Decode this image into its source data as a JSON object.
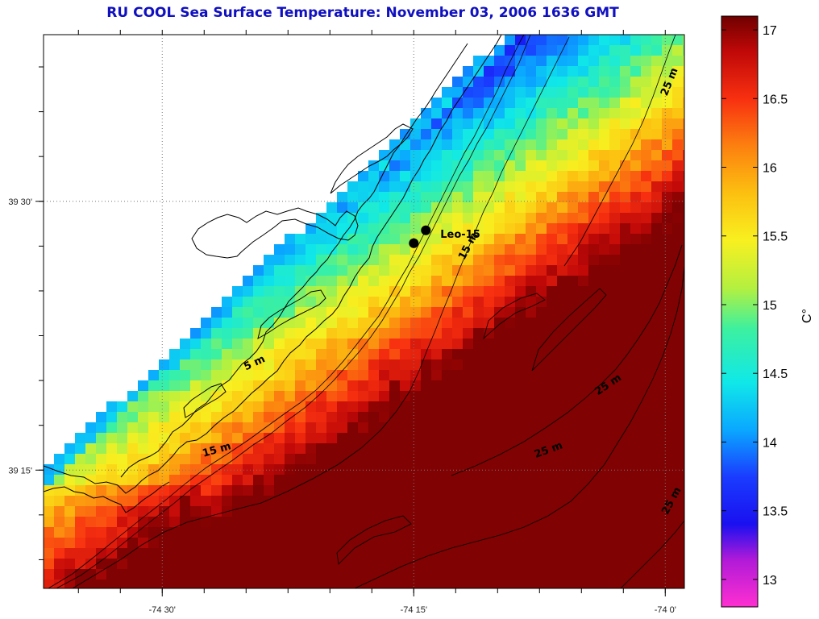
{
  "title": "RU COOL  Sea Surface Temperature:  November 03, 2006 1636 GMT",
  "map": {
    "lon_range": [
      -74.618,
      -73.981
    ],
    "lat_range": [
      39.14,
      39.655
    ],
    "x_tick_labels": [
      {
        "lon": -74.5,
        "label": "-74 30'"
      },
      {
        "lon": -74.25,
        "label": "-74 15'"
      },
      {
        "lon": -74.0,
        "label": "-74 0'"
      }
    ],
    "y_tick_labels": [
      {
        "lat": 39.5,
        "label": "39 30'"
      },
      {
        "lat": 39.25,
        "label": "39 15'"
      }
    ],
    "station": {
      "label": "Leo-15",
      "points": [
        {
          "lon": -74.238,
          "lat": 39.473
        },
        {
          "lon": -74.25,
          "lat": 39.461
        }
      ]
    },
    "contour_labels": [
      {
        "text": "5 m",
        "lon": -74.407,
        "lat": 39.347,
        "angle": -25
      },
      {
        "text": "15 m",
        "lon": -74.193,
        "lat": 39.457,
        "angle": -62
      },
      {
        "text": "15 m",
        "lon": -74.445,
        "lat": 39.266,
        "angle": -16
      },
      {
        "text": "25 m",
        "lon": -74.055,
        "lat": 39.327,
        "angle": -34
      },
      {
        "text": "25 m",
        "lon": -74.115,
        "lat": 39.266,
        "angle": -20
      },
      {
        "text": "25 m",
        "lon": -73.993,
        "lat": 39.61,
        "angle": -68
      },
      {
        "text": "25 m",
        "lon": -73.991,
        "lat": 39.22,
        "angle": -62
      }
    ]
  },
  "colorbar": {
    "unit": "C°",
    "range": [
      12.8,
      17.1
    ],
    "tick_labels": [
      "13",
      "13.5",
      "14",
      "14.5",
      "15",
      "15.5",
      "16",
      "16.5",
      "17"
    ],
    "tick_values": [
      13,
      13.5,
      14,
      14.5,
      15,
      15.5,
      16,
      16.5,
      17
    ]
  },
  "colors": {
    "title": "#1010c0",
    "land": "#ffffff",
    "coastline": "#000000"
  }
}
